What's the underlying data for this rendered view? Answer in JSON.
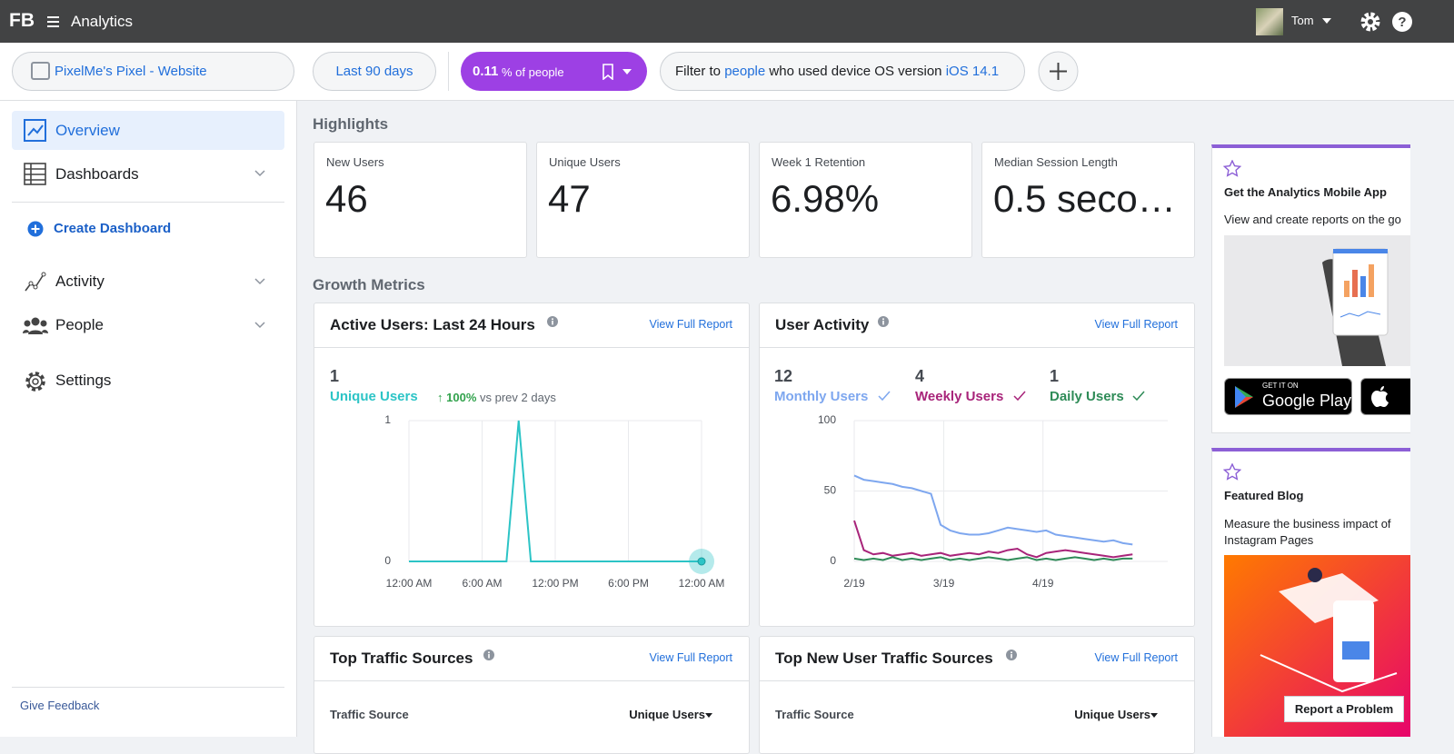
{
  "header": {
    "logo": "FB",
    "app": "Analytics",
    "user": "Tom"
  },
  "toolbar": {
    "source": "PixelMe's Pixel - Website",
    "range": "Last 90 days",
    "segment": {
      "value": "0.11",
      "suffix": "% of people"
    },
    "filter": [
      "Filter to",
      "people",
      "who used device OS version",
      "iOS 14.1"
    ]
  },
  "sidebar": {
    "items": [
      "Overview",
      "Dashboards",
      "Create Dashboard",
      "Activity",
      "People",
      "Settings"
    ],
    "feedback": "Give Feedback"
  },
  "highlights": {
    "title": "Highlights",
    "cards": [
      {
        "label": "New Users",
        "value": "46"
      },
      {
        "label": "Unique Users",
        "value": "47"
      },
      {
        "label": "Week 1 Retention",
        "value": "6.98%"
      },
      {
        "label": "Median Session Length",
        "value": "0.5 seco…"
      }
    ]
  },
  "growth_title": "Growth Metrics",
  "chart_data": [
    {
      "type": "line",
      "title": "Active Users: Last 24 Hours",
      "link": "View Full Report",
      "change": "100%",
      "change_text": "vs prev 2 days",
      "x": [
        0,
        1,
        2,
        3,
        4,
        5,
        6,
        7,
        8,
        9,
        10,
        11,
        12,
        13,
        14,
        15,
        16,
        17,
        18,
        19,
        20,
        21,
        22,
        23,
        24
      ],
      "xlim": [
        0,
        24
      ],
      "xticks": [
        {
          "value": 0,
          "label": "12:00 AM"
        },
        {
          "value": 6,
          "label": "6:00 AM"
        },
        {
          "value": 12,
          "label": "12:00 PM"
        },
        {
          "value": 18,
          "label": "6:00 PM"
        },
        {
          "value": 24,
          "label": "12:00 AM"
        }
      ],
      "ylim": [
        0,
        1
      ],
      "yticks": [
        0,
        1
      ],
      "grid": true,
      "series": [
        {
          "name": "Unique Users",
          "color": "#2cc4c6",
          "total": 1,
          "values": [
            0,
            0,
            0,
            0,
            0,
            0,
            0,
            0,
            0,
            1,
            0,
            0,
            0,
            0,
            0,
            0,
            0,
            0,
            0,
            0,
            0,
            0,
            0,
            0,
            0
          ]
        }
      ]
    },
    {
      "type": "line",
      "title": "User Activity",
      "link": "View Full Report",
      "x": [
        0,
        3,
        6,
        9,
        12,
        15,
        18,
        21,
        24,
        27,
        30,
        33,
        36,
        39,
        42,
        45,
        48,
        51,
        54,
        57,
        60,
        63,
        66,
        69,
        72,
        75,
        78,
        81,
        84,
        87
      ],
      "xlim": [
        0,
        98
      ],
      "xticks": [
        {
          "value": 0,
          "label": "2/19"
        },
        {
          "value": 28,
          "label": "3/19"
        },
        {
          "value": 59,
          "label": "4/19"
        }
      ],
      "ylim": [
        0,
        100
      ],
      "yticks": [
        0,
        50,
        100
      ],
      "grid": true,
      "series": [
        {
          "name": "Monthly Users",
          "color": "#7ea7ef",
          "total": 12,
          "values": [
            61,
            58,
            57,
            56,
            55,
            53,
            52,
            50,
            48,
            26,
            22,
            20,
            19,
            19,
            20,
            22,
            24,
            23,
            22,
            21,
            22,
            19,
            18,
            17,
            16,
            15,
            14,
            15,
            13,
            12
          ]
        },
        {
          "name": "Weekly Users",
          "color": "#a8247a",
          "total": 4,
          "values": [
            29,
            8,
            5,
            6,
            4,
            5,
            6,
            4,
            5,
            6,
            4,
            5,
            6,
            5,
            7,
            6,
            8,
            9,
            5,
            3,
            6,
            7,
            8,
            7,
            6,
            5,
            4,
            3,
            4,
            5
          ]
        },
        {
          "name": "Daily Users",
          "color": "#2e8b57",
          "total": 1,
          "values": [
            2,
            1,
            2,
            1,
            3,
            1,
            2,
            1,
            2,
            3,
            1,
            2,
            1,
            2,
            3,
            2,
            1,
            2,
            3,
            1,
            2,
            1,
            2,
            3,
            2,
            1,
            2,
            1,
            2,
            2
          ]
        }
      ]
    }
  ],
  "tables": [
    {
      "title": "Top Traffic Sources",
      "link": "View Full Report",
      "columns": [
        "Traffic Source",
        "Unique Users"
      ]
    },
    {
      "title": "Top New User Traffic Sources",
      "link": "View Full Report",
      "columns": [
        "Traffic Source",
        "Unique Users"
      ]
    }
  ],
  "promo": {
    "app": {
      "title": "Get the Analytics Mobile App",
      "text": "View and create reports on the go",
      "badge_small": "GET IT ON",
      "badge": "Google Play"
    },
    "blog": {
      "title": "Featured Blog",
      "text": "Measure the business impact of Instagram Pages"
    }
  },
  "report": "Report a Problem"
}
